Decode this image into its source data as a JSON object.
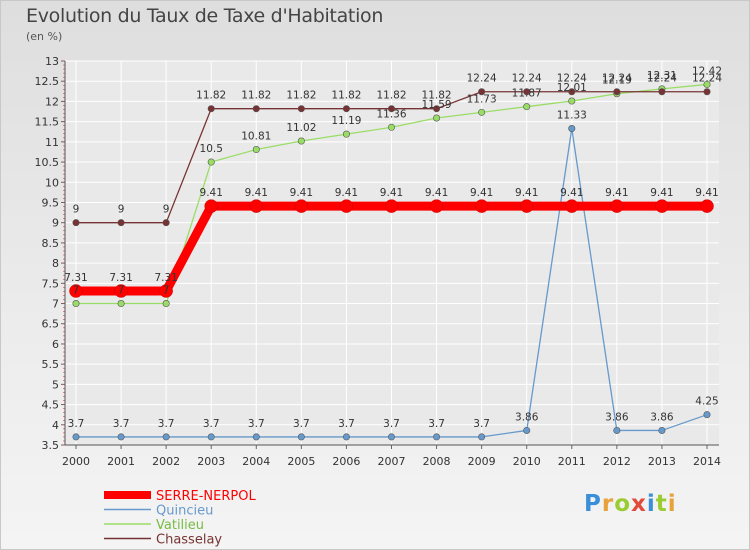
{
  "chart_data": {
    "type": "line",
    "title": "Evolution du Taux de Taxe d'Habitation",
    "subtitle": "(en %)",
    "x": [
      "2000",
      "2001",
      "2002",
      "2003",
      "2004",
      "2005",
      "2006",
      "2007",
      "2008",
      "2009",
      "2010",
      "2011",
      "2012",
      "2013",
      "2014"
    ],
    "ylim": [
      3.5,
      13
    ],
    "yticks": [
      "3.5",
      "4",
      "4.5",
      "5",
      "5.5",
      "6",
      "6.5",
      "7",
      "7.5",
      "8",
      "8.5",
      "9",
      "9.5",
      "10",
      "10.5",
      "11",
      "11.5",
      "12",
      "12.5",
      "13"
    ],
    "grid": true,
    "legend_position": "bottom-left",
    "series": [
      {
        "name": "SERRE-NERPOL",
        "color": "#ff0000",
        "values": [
          7.31,
          7.31,
          7.31,
          9.41,
          9.41,
          9.41,
          9.41,
          9.41,
          9.41,
          9.41,
          9.41,
          9.41,
          9.41,
          9.41,
          9.41
        ],
        "labels": [
          "7.31",
          "7.31",
          "7.31",
          "9.41",
          "9.41",
          "9.41",
          "9.41",
          "9.41",
          "9.41",
          "9.41",
          "9.41",
          "9.41",
          "9.41",
          "9.41",
          "9.41"
        ]
      },
      {
        "name": "Quincieu",
        "color": "#6699cc",
        "values": [
          3.7,
          3.7,
          3.7,
          3.7,
          3.7,
          3.7,
          3.7,
          3.7,
          3.7,
          3.7,
          3.86,
          11.33,
          3.86,
          3.86,
          4.25
        ],
        "labels": [
          "3.7",
          "3.7",
          "3.7",
          "3.7",
          "3.7",
          "3.7",
          "3.7",
          "3.7",
          "3.7",
          "3.7",
          "3.86",
          "11.33",
          "3.86",
          "3.86",
          "4.25"
        ]
      },
      {
        "name": "Vatilieu",
        "color": "#99dd66",
        "values": [
          7,
          7,
          7,
          10.5,
          10.81,
          11.02,
          11.19,
          11.36,
          11.59,
          11.73,
          11.87,
          12.01,
          12.19,
          12.31,
          12.42
        ],
        "labels": [
          "7",
          "7",
          "7",
          "10.5",
          "10.81",
          "11.02",
          "11.19",
          "11.36",
          "11.59",
          "11.73",
          "11.87",
          "12.01",
          "12.19",
          "12.31",
          "12.42"
        ]
      },
      {
        "name": "Chasselay",
        "color": "#773333",
        "values": [
          9,
          9,
          9,
          11.82,
          11.82,
          11.82,
          11.82,
          11.82,
          11.82,
          12.24,
          12.24,
          12.24,
          12.24,
          12.24,
          12.24
        ],
        "labels": [
          "9",
          "9",
          "9",
          "11.82",
          "11.82",
          "11.82",
          "11.82",
          "11.82",
          "11.82",
          "12.24",
          "12.24",
          "12.24",
          "12.24",
          "12.24",
          "12.24"
        ]
      }
    ]
  },
  "logo": {
    "text": "Proxiti"
  }
}
